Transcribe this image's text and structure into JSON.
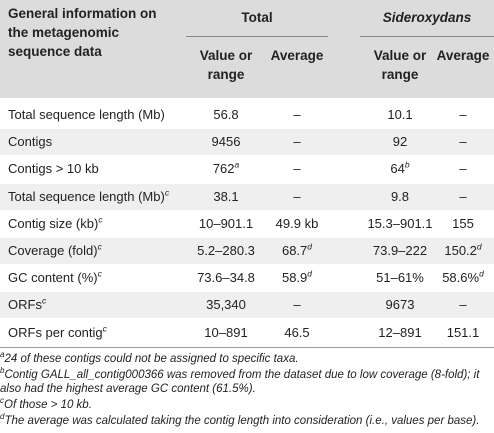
{
  "header": {
    "col0": "General information on the metagenomic sequence data",
    "group_total": "Total",
    "group_sideroxydans": "Sideroxydans",
    "value_or_range": "Value or range",
    "average": "Average"
  },
  "rows": [
    {
      "label": "Total sequence length (Mb)",
      "label_sup": "",
      "total_val": "56.8",
      "total_val_sup": "",
      "total_avg": "–",
      "total_avg_sup": "",
      "sid_val": "10.1",
      "sid_val_sup": "",
      "sid_avg": "–",
      "sid_avg_sup": ""
    },
    {
      "label": "Contigs",
      "label_sup": "",
      "total_val": "9456",
      "total_val_sup": "",
      "total_avg": "–",
      "total_avg_sup": "",
      "sid_val": "92",
      "sid_val_sup": "",
      "sid_avg": "–",
      "sid_avg_sup": ""
    },
    {
      "label": "Contigs > 10 kb",
      "label_sup": "",
      "total_val": "762",
      "total_val_sup": "a",
      "total_avg": "–",
      "total_avg_sup": "",
      "sid_val": "64",
      "sid_val_sup": "b",
      "sid_avg": "–",
      "sid_avg_sup": ""
    },
    {
      "label": "Total sequence length (Mb)",
      "label_sup": "c",
      "total_val": "38.1",
      "total_val_sup": "",
      "total_avg": "–",
      "total_avg_sup": "",
      "sid_val": "9.8",
      "sid_val_sup": "",
      "sid_avg": "–",
      "sid_avg_sup": ""
    },
    {
      "label": "Contig size (kb)",
      "label_sup": "c",
      "total_val": "10–901.1",
      "total_val_sup": "",
      "total_avg": "49.9 kb",
      "total_avg_sup": "",
      "sid_val": "15.3–901.1",
      "sid_val_sup": "",
      "sid_avg": "155",
      "sid_avg_sup": ""
    },
    {
      "label": "Coverage (fold)",
      "label_sup": "c",
      "total_val": "5.2–280.3",
      "total_val_sup": "",
      "total_avg": "68.7",
      "total_avg_sup": "d",
      "sid_val": "73.9–222",
      "sid_val_sup": "",
      "sid_avg": "150.2",
      "sid_avg_sup": "d"
    },
    {
      "label": "GC content (%)",
      "label_sup": "c",
      "total_val": "73.6–34.8",
      "total_val_sup": "",
      "total_avg": "58.9",
      "total_avg_sup": "d",
      "sid_val": "51–61%",
      "sid_val_sup": "",
      "sid_avg": "58.6%",
      "sid_avg_sup": "d"
    },
    {
      "label": "ORFs",
      "label_sup": "c",
      "total_val": "35,340",
      "total_val_sup": "",
      "total_avg": "–",
      "total_avg_sup": "",
      "sid_val": "9673",
      "sid_val_sup": "",
      "sid_avg": "–",
      "sid_avg_sup": ""
    },
    {
      "label": "ORFs per contig",
      "label_sup": "c",
      "total_val": "10–891",
      "total_val_sup": "",
      "total_avg": "46.5",
      "total_avg_sup": "",
      "sid_val": "12–891",
      "sid_val_sup": "",
      "sid_avg": "151.1",
      "sid_avg_sup": ""
    }
  ],
  "footnotes": [
    {
      "mark": "a",
      "text": "24 of these contigs could not be assigned to specific taxa."
    },
    {
      "mark": "b",
      "text": "Contig GALL_all_contig000366 was removed from the dataset due to low coverage (8-fold); it also had the highest average GC content (61.5%)."
    },
    {
      "mark": "c",
      "text": "Of those > 10 kb."
    },
    {
      "mark": "d",
      "text": "The average was calculated taking the contig length into consideration (i.e., values per base)."
    }
  ]
}
